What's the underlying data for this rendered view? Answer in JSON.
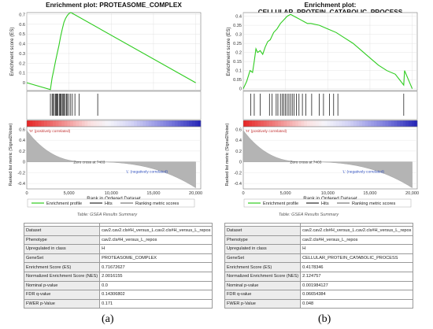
{
  "chart_data": [
    {
      "type": "line",
      "title": "Enrichment plot: PROTEASOME_COMPLEX",
      "es_ylabel": "Enrichment score (ES)",
      "es_yticks": [
        0.0,
        0.1,
        0.2,
        0.3,
        0.4,
        0.5,
        0.6,
        0.7
      ],
      "es_ylim": [
        -0.08,
        0.72
      ],
      "es_curve": {
        "x": [
          0,
          2800,
          3000,
          3200,
          3400,
          3600,
          3800,
          4000,
          4200,
          4400,
          4600,
          4800,
          5000,
          5200,
          5300,
          20000
        ],
        "y": [
          0.0,
          -0.07,
          0.05,
          0.13,
          0.22,
          0.3,
          0.38,
          0.47,
          0.55,
          0.62,
          0.66,
          0.69,
          0.71,
          0.72,
          0.717,
          0.0
        ]
      },
      "hits": [
        2800,
        3000,
        3100,
        3250,
        3400,
        3500,
        3600,
        3700,
        3850,
        3950,
        4050,
        4200,
        4300,
        4400,
        4550,
        4700,
        4800,
        5000,
        5200,
        5400,
        5700,
        6200,
        8400
      ],
      "heat_left_label": "'H' (positively correlated)",
      "zero_cross": "Zero cross at 7403",
      "heat_right_label": "'L' (negatively correlated)",
      "rank_ylabel": "Ranked list metric (Signal2Noise)",
      "rank_yticks": [
        0.6,
        0.4,
        0.2,
        0.0,
        -0.2,
        -0.4
      ],
      "xlabel": "Rank in Ordered Dataset",
      "xticks": [
        0,
        5000,
        10000,
        15000,
        20000
      ],
      "xtick_labels": [
        "0",
        "5,000",
        "10,000",
        "15,000",
        "20,000"
      ],
      "xlim": [
        0,
        20600
      ],
      "legend": [
        "Enrichment profile",
        "Hits",
        "Ranking metric scores"
      ],
      "colors": {
        "es_line": "#2ecc1f",
        "hits": "#000000",
        "metric": "#999999"
      }
    },
    {
      "type": "line",
      "title": "Enrichment plot:\nCELLULAR_PROTEIN_CATABOLIC_PROCESS",
      "es_ylabel": "Enrichment score (ES)",
      "es_yticks": [
        0.0,
        0.05,
        0.1,
        0.15,
        0.2,
        0.25,
        0.3,
        0.35,
        0.4
      ],
      "es_ylim": [
        -0.01,
        0.42
      ],
      "es_curve": {
        "x": [
          0,
          400,
          800,
          1100,
          1300,
          1500,
          1700,
          2000,
          2300,
          2600,
          2900,
          3200,
          3600,
          4000,
          4400,
          4800,
          5200,
          5600,
          6000,
          6400,
          6800,
          7200,
          7600,
          8000,
          9000,
          10000,
          11000,
          12000,
          13000,
          14000,
          15000,
          16000,
          17000,
          18000,
          19000,
          19100,
          20000
        ],
        "y": [
          0.0,
          0.04,
          0.1,
          0.09,
          0.15,
          0.22,
          0.2,
          0.21,
          0.19,
          0.23,
          0.26,
          0.27,
          0.31,
          0.33,
          0.36,
          0.38,
          0.4,
          0.41,
          0.4,
          0.39,
          0.38,
          0.37,
          0.36,
          0.36,
          0.35,
          0.33,
          0.31,
          0.28,
          0.25,
          0.21,
          0.17,
          0.13,
          0.1,
          0.08,
          0.02,
          0.1,
          0.0
        ]
      },
      "hits": [
        900,
        1300,
        2000,
        3100,
        3400,
        3900,
        4100,
        4400,
        4600,
        4800,
        5000,
        5200,
        5400,
        5600,
        5800,
        6000,
        6300,
        6600,
        7000,
        7400,
        8100,
        9000,
        9500,
        10200,
        10700,
        11200,
        19000
      ],
      "heat_left_label": "'H' (positively correlated)",
      "zero_cross": "Zero cross at 7403",
      "heat_right_label": "'L' (negatively correlated)",
      "rank_ylabel": "Ranked list metric (Signal2Noise)",
      "rank_yticks": [
        0.6,
        0.4,
        0.2,
        0.0,
        -0.2,
        -0.4
      ],
      "xlabel": "Rank in Ordered Dataset",
      "xticks": [
        0,
        5000,
        10000,
        15000,
        20000
      ],
      "xtick_labels": [
        "0",
        "5,000",
        "10,000",
        "15,000",
        "20,000"
      ],
      "xlim": [
        0,
        20600
      ],
      "legend": [
        "Enrichment profile",
        "Hits",
        "Ranking metric scores"
      ],
      "colors": {
        "es_line": "#2ecc1f",
        "hits": "#000000",
        "metric": "#999999"
      }
    }
  ],
  "tables": [
    {
      "caption": "Table: GSEA Results Summary",
      "rows": [
        [
          "Dataset",
          "cav2.cav2.cls#H_versus_L.cav2.cls#H_versus_L_repos"
        ],
        [
          "Phenotype",
          "cav2.cls#H_versus_L_repos"
        ],
        [
          "Upregulated in class",
          "H"
        ],
        [
          "GeneSet",
          "PROTEASOME_COMPLEX"
        ],
        [
          "Enrichment Score (ES)",
          "0.71672627"
        ],
        [
          "Normalized Enrichment Score (NES)",
          "2.0016155"
        ],
        [
          "Nominal p-value",
          "0.0"
        ],
        [
          "FDR q-value",
          "0.14306802"
        ],
        [
          "FWER p-Value",
          "0.171"
        ]
      ]
    },
    {
      "caption": "Table: GSEA Results Summary",
      "rows": [
        [
          "Dataset",
          "cav2.cav2.cls#H_versus_L.cav2.cls#H_versus_L_repos"
        ],
        [
          "Phenotype",
          "cav2.cls#H_versus_L_repos"
        ],
        [
          "Upregulated in class",
          "H"
        ],
        [
          "GeneSet",
          "CELLULAR_PROTEIN_CATABOLIC_PROCESS"
        ],
        [
          "Enrichment Score (ES)",
          "0.4178346"
        ],
        [
          "Normalized Enrichment Score (NES)",
          "2.124757"
        ],
        [
          "Nominal p-value",
          "0.001984127"
        ],
        [
          "FDR q-value",
          "0.06654384"
        ],
        [
          "FWER p-Value",
          "0.048"
        ]
      ]
    }
  ],
  "panel_labels": [
    "(a)",
    "(b)"
  ]
}
